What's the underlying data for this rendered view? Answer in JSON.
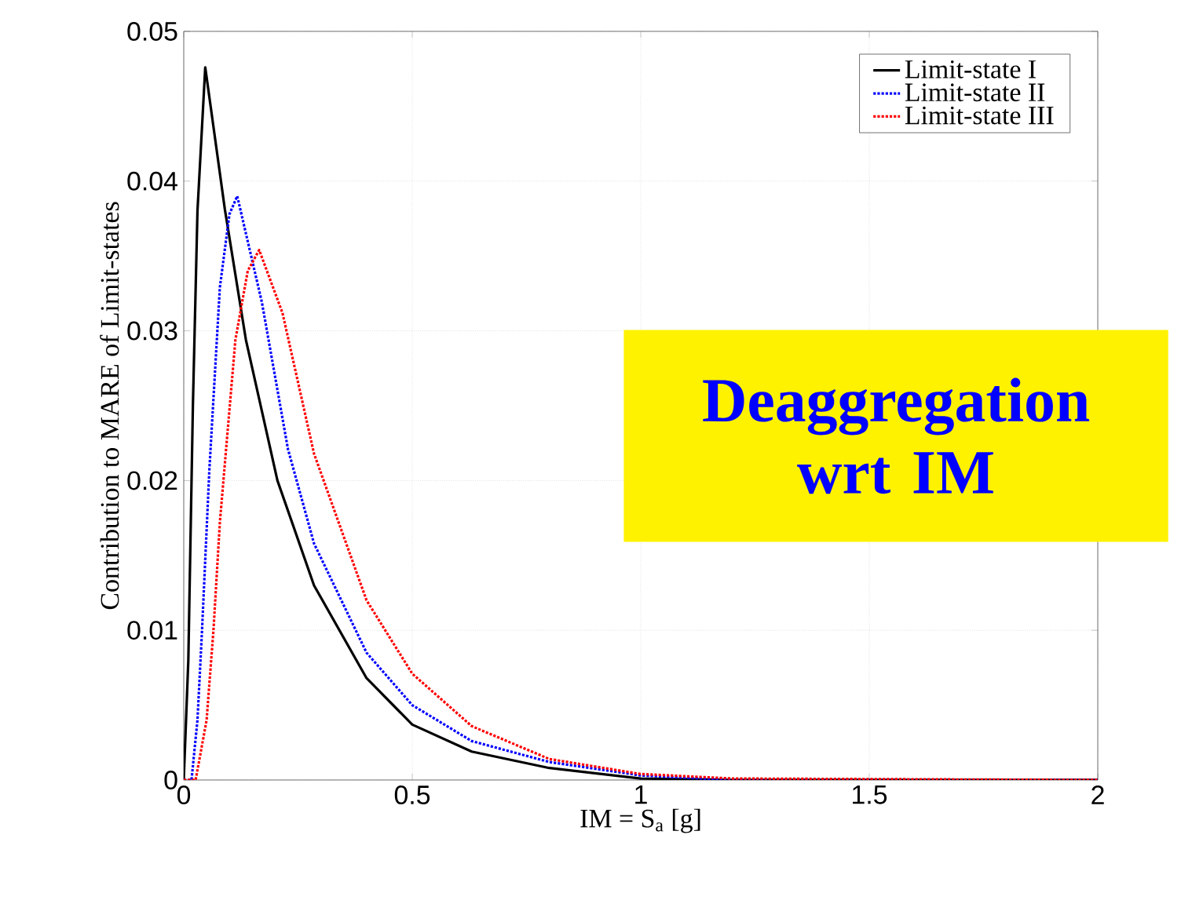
{
  "chart_data": {
    "type": "line",
    "xlabel": "IM = S$_{a}$ [g]",
    "ylabel": "Contribution to MARE of Limit-states",
    "xlim": [
      0,
      2
    ],
    "ylim": [
      0,
      0.05
    ],
    "xticks": [
      0,
      0.5,
      1,
      1.5,
      2
    ],
    "yticks": [
      0,
      0.01,
      0.02,
      0.03,
      0.04,
      0.05
    ],
    "grid": true,
    "legend": "top right",
    "annotations": [
      "Deaggregation wrt IM"
    ],
    "series": [
      {
        "name": "Limit-state I",
        "color": "#000000",
        "line_style": "solid",
        "x": [
          0,
          0.01,
          0.02,
          0.03,
          0.047,
          0.09,
          0.136,
          0.205,
          0.285,
          0.4,
          0.5,
          0.63,
          0.8,
          1.0,
          1.2,
          2
        ],
        "values": [
          0,
          0.008,
          0.025,
          0.038,
          0.0476,
          0.0381,
          0.0294,
          0.02,
          0.013,
          0.0068,
          0.0037,
          0.0019,
          0.0008,
          0.0001,
          0,
          0
        ]
      },
      {
        "name": "Limit-state II",
        "color": "#0000ff",
        "line_style": "dotted",
        "x": [
          0,
          0.017,
          0.03,
          0.04,
          0.056,
          0.079,
          0.1,
          0.117,
          0.171,
          0.228,
          0.285,
          0.4,
          0.5,
          0.63,
          0.8,
          1.0,
          1.2,
          2
        ],
        "values": [
          0,
          0,
          0.004,
          0.01,
          0.0207,
          0.0329,
          0.0378,
          0.039,
          0.0319,
          0.0221,
          0.0158,
          0.0085,
          0.005,
          0.0026,
          0.0012,
          0.0003,
          0,
          0
        ]
      },
      {
        "name": "Limit-state III",
        "color": "#ff0000",
        "line_style": "dotted",
        "x": [
          0,
          0.026,
          0.05,
          0.065,
          0.079,
          0.113,
          0.14,
          0.165,
          0.216,
          0.285,
          0.4,
          0.5,
          0.63,
          0.8,
          1.0,
          1.2,
          2
        ],
        "values": [
          0,
          0,
          0.004,
          0.01,
          0.0172,
          0.0294,
          0.034,
          0.0354,
          0.0312,
          0.0218,
          0.012,
          0.0071,
          0.0036,
          0.0014,
          0.0004,
          0.0001,
          0
        ]
      }
    ]
  }
}
